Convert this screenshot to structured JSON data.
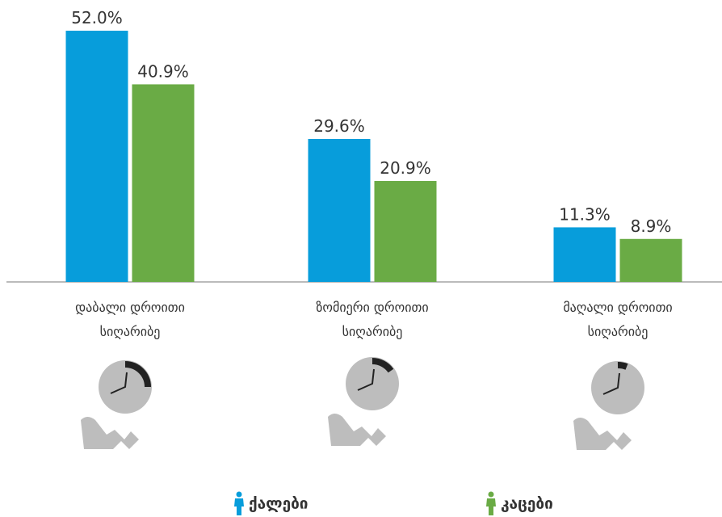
{
  "chart_data": {
    "type": "bar",
    "categories": [
      "დაბალი დროითი სიღარიბე",
      "ზომიერი დროითი სიღარიბე",
      "მაღალი დროითი სიღარიბე"
    ],
    "series": [
      {
        "name": "ქალები",
        "color": "#079ddb",
        "values": [
          52.0,
          29.6,
          11.3
        ],
        "value_labels": [
          "52.0%",
          "29.6%",
          "11.3%"
        ]
      },
      {
        "name": "კაცები",
        "color": "#6aab45",
        "values": [
          40.9,
          20.9,
          8.9
        ],
        "value_labels": [
          "40.9%",
          "20.9%",
          "8.9%"
        ]
      }
    ],
    "legend": "bottom"
  }
}
